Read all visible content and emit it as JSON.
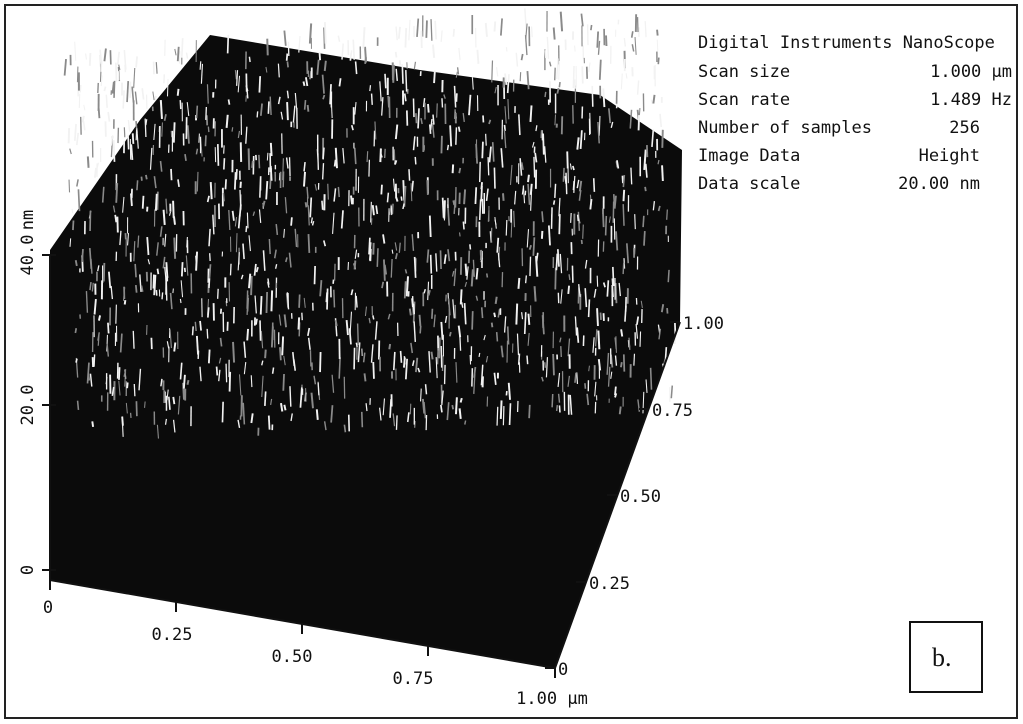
{
  "header": {
    "title": "Digital Instruments NanoScope"
  },
  "info": {
    "rows": [
      [
        "Scan size",
        "1.000 µm"
      ],
      [
        "Scan rate",
        "1.489 Hz"
      ],
      [
        "Number of samples",
        "256"
      ],
      [
        "Image Data",
        "Height"
      ],
      [
        "Data scale",
        "20.00 nm"
      ]
    ]
  },
  "z_axis": {
    "unit": "nm",
    "ticks": [
      "0",
      "20.0",
      "40.0"
    ]
  },
  "x_axis": {
    "ticks": [
      "0",
      "0.25",
      "0.50",
      "0.75",
      "1.00 µm"
    ]
  },
  "y_axis": {
    "ticks": [
      "0",
      "0.25",
      "0.50",
      "0.75",
      "1.00"
    ]
  },
  "panel_label": "b."
}
